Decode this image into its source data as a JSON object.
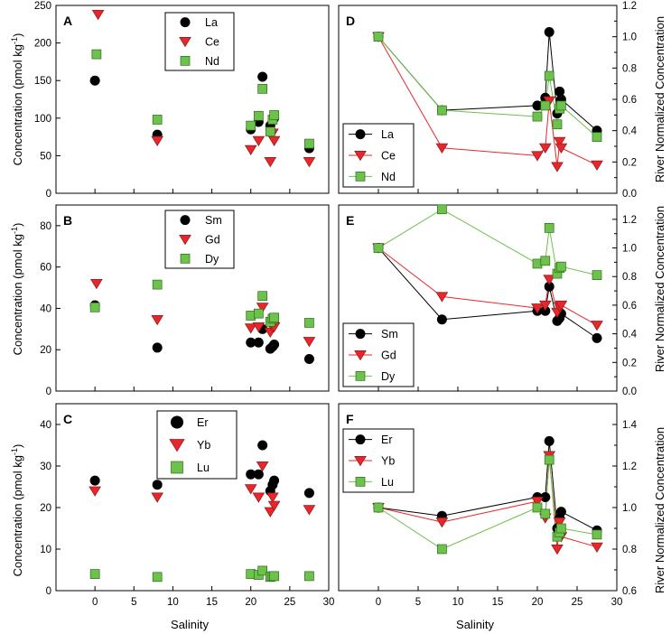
{
  "figure": {
    "shared_xlabel": "Salinity",
    "left_ylabel": "Concentration (pmol kg",
    "left_ylabel_sup": "-1",
    "left_ylabel_close": ")",
    "right_ylabel": "River Normalized Concentration"
  },
  "chart_data": [
    {
      "id": "A",
      "label": "A",
      "type": "scatter",
      "xlim": [
        -5,
        30
      ],
      "ylim": [
        0,
        250
      ],
      "yticks": [
        0,
        50,
        100,
        150,
        200,
        250
      ],
      "xticks": [],
      "legend_position": "top-center",
      "series": [
        {
          "name": "La",
          "marker": "circle",
          "color": "#000000",
          "points": [
            [
              0,
              150
            ],
            [
              8,
              78
            ],
            [
              20,
              85
            ],
            [
              21,
              95
            ],
            [
              21.5,
              155
            ],
            [
              22.5,
              90
            ],
            [
              23,
              100
            ],
            [
              27.5,
              60
            ]
          ]
        },
        {
          "name": "Ce",
          "marker": "triangle",
          "color": "#e8262b",
          "points": [
            [
              0.4,
              238
            ],
            [
              8,
              70
            ],
            [
              20,
              58
            ],
            [
              21,
              70
            ],
            [
              22.5,
              42
            ],
            [
              22.8,
              80
            ],
            [
              23,
              70
            ],
            [
              27.5,
              42
            ]
          ]
        },
        {
          "name": "Nd",
          "marker": "square",
          "color": "#6cc24a",
          "points": [
            [
              0.2,
              185
            ],
            [
              8,
              98
            ],
            [
              20,
              90
            ],
            [
              21,
              103
            ],
            [
              21.5,
              139
            ],
            [
              22.5,
              82
            ],
            [
              22.8,
              98
            ],
            [
              23,
              104
            ],
            [
              27.5,
              66
            ]
          ]
        }
      ]
    },
    {
      "id": "D",
      "label": "D",
      "type": "line",
      "xlim": [
        -5,
        30
      ],
      "ylim": [
        0,
        1.2
      ],
      "yticks": [
        0.0,
        0.2,
        0.4,
        0.6,
        0.8,
        1.0,
        1.2
      ],
      "xticks": [],
      "legend_position": "bottom-left",
      "series": [
        {
          "name": "La",
          "marker": "circle",
          "color": "#000000",
          "points": [
            [
              0,
              1.0
            ],
            [
              8,
              0.53
            ],
            [
              20,
              0.56
            ],
            [
              21,
              0.61
            ],
            [
              21.5,
              1.03
            ],
            [
              22.5,
              0.51
            ],
            [
              22.8,
              0.65
            ],
            [
              23,
              0.6
            ],
            [
              27.5,
              0.4
            ]
          ]
        },
        {
          "name": "Ce",
          "marker": "triangle",
          "color": "#e8262b",
          "points": [
            [
              0,
              1.0
            ],
            [
              8,
              0.29
            ],
            [
              20,
              0.24
            ],
            [
              21,
              0.29
            ],
            [
              21.5,
              0.59
            ],
            [
              22.5,
              0.17
            ],
            [
              22.8,
              0.33
            ],
            [
              23,
              0.29
            ],
            [
              27.5,
              0.18
            ]
          ]
        },
        {
          "name": "Nd",
          "marker": "square",
          "color": "#6cc24a",
          "points": [
            [
              0,
              1.0
            ],
            [
              8,
              0.53
            ],
            [
              20,
              0.49
            ],
            [
              21,
              0.56
            ],
            [
              21.5,
              0.75
            ],
            [
              22.5,
              0.44
            ],
            [
              22.8,
              0.54
            ],
            [
              23,
              0.56
            ],
            [
              27.5,
              0.36
            ]
          ]
        }
      ]
    },
    {
      "id": "B",
      "label": "B",
      "type": "scatter",
      "xlim": [
        -5,
        30
      ],
      "ylim": [
        0,
        90
      ],
      "yticks": [
        0,
        20,
        40,
        60,
        80
      ],
      "xticks": [],
      "legend_position": "top-center",
      "series": [
        {
          "name": "Sm",
          "marker": "circle",
          "color": "#000000",
          "points": [
            [
              0,
              41.5
            ],
            [
              8,
              21
            ],
            [
              20,
              23.5
            ],
            [
              21,
              23.5
            ],
            [
              21.5,
              30
            ],
            [
              22.5,
              20.5
            ],
            [
              22.8,
              21.5
            ],
            [
              23,
              22.5
            ],
            [
              27.5,
              15.5
            ]
          ]
        },
        {
          "name": "Gd",
          "marker": "triangle",
          "color": "#e8262b",
          "points": [
            [
              0.2,
              52
            ],
            [
              8,
              34.5
            ],
            [
              20,
              30.5
            ],
            [
              21,
              31
            ],
            [
              21.5,
              40.5
            ],
            [
              22.5,
              28.5
            ],
            [
              22.8,
              31
            ],
            [
              23,
              31
            ],
            [
              27.5,
              24
            ]
          ]
        },
        {
          "name": "Dy",
          "marker": "square",
          "color": "#6cc24a",
          "points": [
            [
              0,
              40.5
            ],
            [
              8,
              51.5
            ],
            [
              20,
              36.5
            ],
            [
              21,
              37.5
            ],
            [
              21.5,
              46
            ],
            [
              22.5,
              33.5
            ],
            [
              22.8,
              35
            ],
            [
              23,
              35.5
            ],
            [
              27.5,
              33
            ]
          ]
        }
      ]
    },
    {
      "id": "E",
      "label": "E",
      "type": "line",
      "xlim": [
        -5,
        30
      ],
      "ylim": [
        0,
        1.3
      ],
      "yticks": [
        0.0,
        0.2,
        0.4,
        0.6,
        0.8,
        1.0,
        1.2
      ],
      "xticks": [],
      "legend_position": "bottom-left",
      "series": [
        {
          "name": "Sm",
          "marker": "circle",
          "color": "#000000",
          "points": [
            [
              0,
              1.0
            ],
            [
              8,
              0.5
            ],
            [
              20,
              0.56
            ],
            [
              21,
              0.56
            ],
            [
              21.5,
              0.73
            ],
            [
              22.5,
              0.49
            ],
            [
              22.8,
              0.51
            ],
            [
              23,
              0.54
            ],
            [
              27.5,
              0.37
            ]
          ]
        },
        {
          "name": "Gd",
          "marker": "triangle",
          "color": "#e8262b",
          "points": [
            [
              0,
              1.0
            ],
            [
              8,
              0.66
            ],
            [
              20,
              0.58
            ],
            [
              21,
              0.6
            ],
            [
              21.5,
              0.78
            ],
            [
              22.5,
              0.55
            ],
            [
              22.8,
              0.59
            ],
            [
              23,
              0.6
            ],
            [
              27.5,
              0.46
            ]
          ]
        },
        {
          "name": "Dy",
          "marker": "square",
          "color": "#6cc24a",
          "points": [
            [
              0,
              1.0
            ],
            [
              8,
              1.27
            ],
            [
              20,
              0.89
            ],
            [
              21,
              0.91
            ],
            [
              21.5,
              1.14
            ],
            [
              22.5,
              0.82
            ],
            [
              22.8,
              0.86
            ],
            [
              23,
              0.87
            ],
            [
              27.5,
              0.81
            ]
          ]
        }
      ]
    },
    {
      "id": "C",
      "label": "C",
      "type": "scatter",
      "xlim": [
        -5,
        30
      ],
      "ylim": [
        0,
        45
      ],
      "yticks": [
        0,
        10,
        20,
        30,
        40
      ],
      "xticks": [
        0,
        5,
        10,
        15,
        20,
        25,
        30
      ],
      "legend_position": "top-center",
      "series": [
        {
          "name": "Er",
          "marker": "circle",
          "color": "#000000",
          "points": [
            [
              0,
              26.5
            ],
            [
              8,
              25.5
            ],
            [
              20,
              28
            ],
            [
              21,
              28
            ],
            [
              21.5,
              35
            ],
            [
              22.5,
              24
            ],
            [
              22.8,
              25.5
            ],
            [
              23,
              26.5
            ],
            [
              27.5,
              23.5
            ]
          ]
        },
        {
          "name": "Yb",
          "marker": "triangle",
          "color": "#e8262b",
          "points": [
            [
              0,
              24
            ],
            [
              8,
              22.5
            ],
            [
              20,
              24.5
            ],
            [
              21,
              22.5
            ],
            [
              21.5,
              30
            ],
            [
              22.5,
              19
            ],
            [
              22.8,
              22.5
            ],
            [
              23,
              20.5
            ],
            [
              27.5,
              19.5
            ]
          ]
        },
        {
          "name": "Lu",
          "marker": "square",
          "color": "#6cc24a",
          "points": [
            [
              0,
              4
            ],
            [
              8,
              3.3
            ],
            [
              20,
              4
            ],
            [
              21,
              3.8
            ],
            [
              21.5,
              4.8
            ],
            [
              22.5,
              3.3
            ],
            [
              22.8,
              3.5
            ],
            [
              23,
              3.5
            ],
            [
              27.5,
              3.5
            ]
          ]
        }
      ]
    },
    {
      "id": "F",
      "label": "F",
      "type": "line",
      "xlim": [
        -5,
        30
      ],
      "ylim": [
        0.6,
        1.5
      ],
      "yticks": [
        0.6,
        0.8,
        1.0,
        1.2,
        1.4
      ],
      "xticks": [
        0,
        5,
        10,
        15,
        20,
        25,
        30
      ],
      "legend_position": "top-left",
      "series": [
        {
          "name": "Er",
          "marker": "circle",
          "color": "#000000",
          "points": [
            [
              0,
              1.0
            ],
            [
              8,
              0.96
            ],
            [
              20,
              1.05
            ],
            [
              21,
              1.05
            ],
            [
              21.5,
              1.32
            ],
            [
              22.5,
              0.9
            ],
            [
              22.8,
              0.95
            ],
            [
              23,
              0.98
            ],
            [
              27.5,
              0.89
            ]
          ]
        },
        {
          "name": "Yb",
          "marker": "triangle",
          "color": "#e8262b",
          "points": [
            [
              0,
              1.0
            ],
            [
              8,
              0.93
            ],
            [
              20,
              1.03
            ],
            [
              21,
              0.95
            ],
            [
              21.5,
              1.25
            ],
            [
              22.5,
              0.8
            ],
            [
              22.8,
              0.93
            ],
            [
              23,
              0.86
            ],
            [
              27.5,
              0.81
            ]
          ]
        },
        {
          "name": "Lu",
          "marker": "square",
          "color": "#6cc24a",
          "points": [
            [
              0,
              1.0
            ],
            [
              8,
              0.8
            ],
            [
              20,
              1.0
            ],
            [
              21,
              0.97
            ],
            [
              21.5,
              1.23
            ],
            [
              22.5,
              0.86
            ],
            [
              22.8,
              0.88
            ],
            [
              23,
              0.9
            ],
            [
              27.5,
              0.87
            ]
          ]
        }
      ]
    }
  ]
}
